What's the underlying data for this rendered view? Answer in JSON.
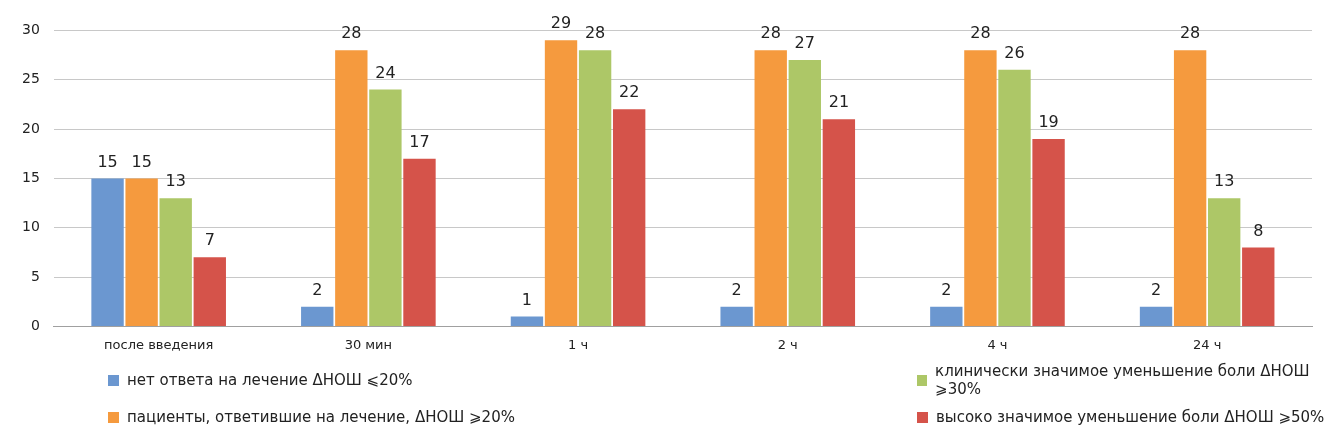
{
  "chart_data": {
    "type": "bar",
    "categories": [
      "после введения",
      "30 мин",
      "1 ч",
      "2 ч",
      "4 ч",
      "24 ч"
    ],
    "series": [
      {
        "name": "нет ответа на лечение ΔНОШ ⩽20%",
        "color": "#6b97d0",
        "values": [
          15,
          2,
          1,
          2,
          2,
          2
        ]
      },
      {
        "name": "пациенты, ответившие на лечение, ΔНОШ ⩾20%",
        "color": "#f59a3e",
        "values": [
          15,
          28,
          29,
          28,
          28,
          28
        ]
      },
      {
        "name": "клинически значимое уменьшение боли ΔНОШ ⩾30%",
        "color": "#adc767",
        "values": [
          13,
          24,
          28,
          27,
          26,
          13
        ]
      },
      {
        "name": "высоко значимое уменьшение боли ΔНОШ ⩾50%",
        "color": "#d5534a",
        "values": [
          7,
          17,
          22,
          21,
          19,
          8
        ]
      }
    ],
    "ylim": [
      0,
      30
    ],
    "yticks": [
      0,
      5,
      10,
      15,
      20,
      25,
      30
    ],
    "grid": "y",
    "legend": "bottom",
    "data_labels": true
  }
}
